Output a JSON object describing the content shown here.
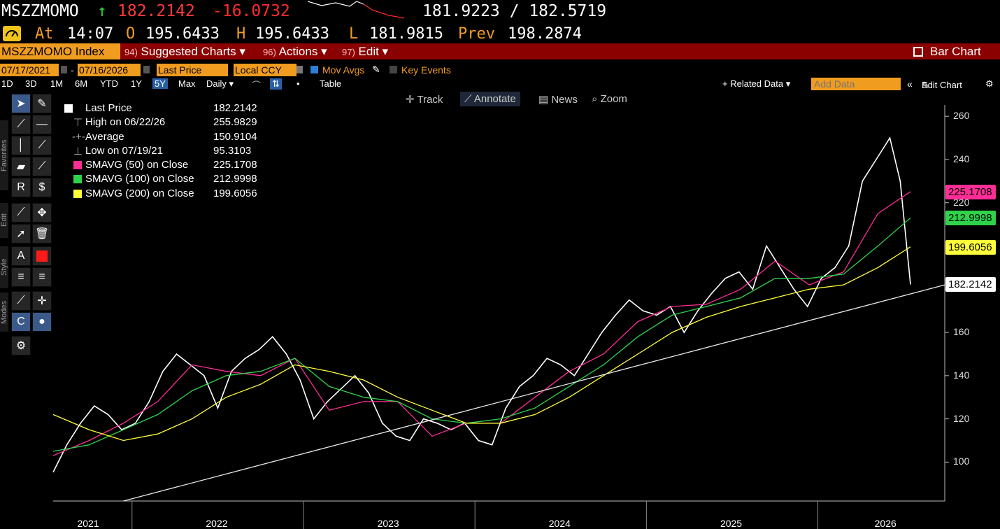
{
  "header": {
    "ticker": "MSZZMOMO",
    "arrow": "↑",
    "last": "182.2142",
    "change": "-16.0732",
    "bid_ask": "181.9223 / 182.5719",
    "at_label": "At",
    "time": "14:07",
    "o_label": "O",
    "open": "195.6433",
    "h_label": "H",
    "high": "195.6433",
    "l_label": "L",
    "low": "181.9815",
    "prev_label": "Prev",
    "prev": "198.2874"
  },
  "menubar": {
    "index_label": "MSZZMOMO Index",
    "suggested_num": "94)",
    "suggested": "Suggested Charts ▾",
    "actions_num": "96)",
    "actions": "Actions ▾",
    "edit_num": "97)",
    "edit": "Edit ▾",
    "bar_chart": "Bar Chart"
  },
  "controls": {
    "start_date": "07/17/2021",
    "end_date": "07/16/2026",
    "date_sep": "-",
    "field": "Last Price",
    "currency": "Local CCY",
    "mov_avgs": "Mov Avgs",
    "key_events": "Key Events",
    "periods": [
      "1D",
      "3D",
      "1M",
      "6M",
      "YTD",
      "1Y",
      "5Y",
      "Max"
    ],
    "frequency": "Daily ▾",
    "table": "Table",
    "related_data": "+ Related Data ▾",
    "add_data_placeholder": "Add Data",
    "edit_chart": "Edit Chart"
  },
  "chart_tools": {
    "track": "Track",
    "annotate": "Annotate",
    "news": "News",
    "zoom": "Zoom"
  },
  "side_tabs": {
    "favorites": "Favorites",
    "edit": "Edit",
    "style": "Style",
    "modes": "Modes"
  },
  "legend": {
    "rows": [
      {
        "label": "Last Price",
        "value": "182.2142"
      },
      {
        "label": "High on 06/22/26",
        "value": "255.9829"
      },
      {
        "label": "Average",
        "value": "150.9104"
      },
      {
        "label": "Low on 07/19/21",
        "value": "95.3103"
      },
      {
        "label": "SMAVG (50)  on Close",
        "value": "225.1708"
      },
      {
        "label": "SMAVG (100)  on Close",
        "value": "212.9998"
      },
      {
        "label": "SMAVG (200)  on Close",
        "value": "199.6056"
      }
    ]
  },
  "colors": {
    "orange": "#f09c1e",
    "red_bar": "#8b0000",
    "price": "#ffffff",
    "sma50": "#ff2d95",
    "sma100": "#2fd34a",
    "sma200": "#ffff3a",
    "change_red": "#ff2b2b",
    "up_green": "#2bd43a"
  },
  "chart_data": {
    "type": "line",
    "series": [
      {
        "name": "Last Price",
        "x": [
          2021.54,
          2021.62,
          2021.7,
          2021.78,
          2021.86,
          2021.94,
          2022.02,
          2022.1,
          2022.18,
          2022.26,
          2022.34,
          2022.42,
          2022.5,
          2022.58,
          2022.66,
          2022.74,
          2022.82,
          2022.9,
          2022.98,
          2023.06,
          2023.14,
          2023.22,
          2023.3,
          2023.38,
          2023.46,
          2023.54,
          2023.62,
          2023.7,
          2023.78,
          2023.86,
          2023.94,
          2024.02,
          2024.1,
          2024.18,
          2024.26,
          2024.34,
          2024.42,
          2024.5,
          2024.58,
          2024.66,
          2024.74,
          2024.82,
          2024.9,
          2024.98,
          2025.06,
          2025.14,
          2025.22,
          2025.3,
          2025.38,
          2025.46,
          2025.54,
          2025.62,
          2025.7,
          2025.78,
          2025.86,
          2025.94,
          2026.02,
          2026.1,
          2026.18,
          2026.26,
          2026.34,
          2026.42,
          2026.48,
          2026.54
        ],
        "y": [
          95.3,
          108,
          118,
          126,
          122,
          115,
          118,
          128,
          142,
          150,
          145,
          140,
          125,
          142,
          148,
          152,
          158,
          150,
          138,
          120,
          128,
          134,
          140,
          132,
          118,
          112,
          110,
          120,
          118,
          115,
          118,
          110,
          108,
          125,
          135,
          140,
          148,
          145,
          140,
          150,
          160,
          168,
          175,
          170,
          168,
          172,
          160,
          170,
          178,
          185,
          188,
          180,
          200,
          190,
          180,
          172,
          185,
          190,
          200,
          230,
          240,
          250,
          230,
          182.2
        ]
      },
      {
        "name": "SMAVG (50)",
        "x": [
          2021.54,
          2021.75,
          2021.95,
          2022.15,
          2022.35,
          2022.55,
          2022.75,
          2022.95,
          2023.15,
          2023.35,
          2023.55,
          2023.75,
          2023.95,
          2024.15,
          2024.35,
          2024.55,
          2024.75,
          2024.95,
          2025.15,
          2025.35,
          2025.55,
          2025.75,
          2025.95,
          2026.15,
          2026.35,
          2026.54
        ],
        "y": [
          103,
          110,
          118,
          128,
          145,
          142,
          140,
          148,
          124,
          128,
          128,
          112,
          118,
          118,
          130,
          142,
          150,
          165,
          172,
          173,
          180,
          193,
          182,
          188,
          215,
          225.17
        ]
      },
      {
        "name": "SMAVG (100)",
        "x": [
          2021.54,
          2021.75,
          2021.95,
          2022.15,
          2022.35,
          2022.55,
          2022.75,
          2022.95,
          2023.15,
          2023.35,
          2023.55,
          2023.75,
          2023.95,
          2024.15,
          2024.35,
          2024.55,
          2024.75,
          2024.95,
          2025.15,
          2025.35,
          2025.55,
          2025.75,
          2025.95,
          2026.15,
          2026.35,
          2026.54
        ],
        "y": [
          105,
          108,
          115,
          122,
          133,
          140,
          142,
          148,
          135,
          130,
          128,
          120,
          118,
          120,
          125,
          135,
          145,
          158,
          168,
          172,
          176,
          185,
          185,
          187,
          200,
          213.0
        ]
      },
      {
        "name": "SMAVG (200)",
        "x": [
          2021.54,
          2021.75,
          2021.95,
          2022.15,
          2022.35,
          2022.55,
          2022.75,
          2022.95,
          2023.15,
          2023.35,
          2023.55,
          2023.75,
          2023.95,
          2024.15,
          2024.35,
          2024.55,
          2024.75,
          2024.95,
          2025.15,
          2025.35,
          2025.55,
          2025.75,
          2025.95,
          2026.15,
          2026.35,
          2026.54
        ],
        "y": [
          122,
          115,
          110,
          113,
          120,
          130,
          136,
          145,
          142,
          138,
          130,
          124,
          118,
          118,
          122,
          130,
          140,
          150,
          160,
          167,
          172,
          176,
          180,
          182,
          190,
          199.61
        ]
      },
      {
        "name": "Trend",
        "x": [
          2021.95,
          2026.74
        ],
        "y": [
          82,
          182
        ]
      }
    ],
    "xlim": [
      2021.54,
      2026.74
    ],
    "ylim": [
      82,
      262
    ],
    "yticks": [
      100,
      120,
      140,
      160,
      180,
      200,
      220,
      240,
      260
    ],
    "xticks": [
      {
        "label": "2021",
        "x": 2021.75
      },
      {
        "label": "2022",
        "x": 2022.5
      },
      {
        "label": "2023",
        "x": 2023.5
      },
      {
        "label": "2024",
        "x": 2024.5
      },
      {
        "label": "2025",
        "x": 2025.5
      },
      {
        "label": "2026",
        "x": 2026.4
      }
    ],
    "xdividers": [
      2022.0,
      2023.0,
      2024.0,
      2025.0,
      2026.0
    ],
    "grid": false,
    "legend_position": "top-left",
    "price_tags": [
      {
        "label": "225.1708",
        "value": 225.17,
        "color": "#ff2d95"
      },
      {
        "label": "212.9998",
        "value": 213.0,
        "color": "#2fd34a"
      },
      {
        "label": "199.6056",
        "value": 199.61,
        "color": "#ffff3a"
      },
      {
        "label": "182.2142",
        "value": 182.21,
        "color": "#ffffff"
      }
    ]
  }
}
